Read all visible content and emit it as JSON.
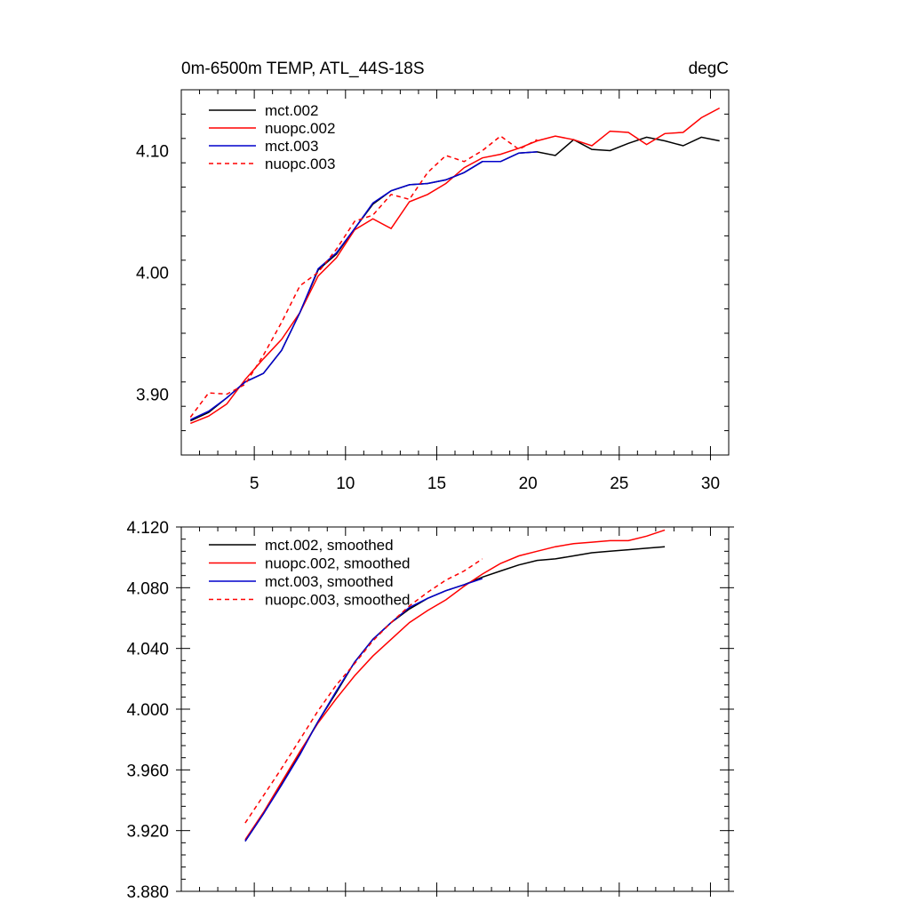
{
  "chart_data": [
    {
      "type": "line",
      "title": "0m-6500m TEMP, ATL_44S-18S",
      "units": "degC",
      "xlim": [
        1,
        31
      ],
      "ylim": [
        3.85,
        4.15
      ],
      "xticks": [
        5,
        10,
        15,
        20,
        25,
        30
      ],
      "xticklabels": [
        "5",
        "10",
        "15",
        "20",
        "25",
        "30"
      ],
      "yticks": [
        3.9,
        4.0,
        4.1
      ],
      "yticklabels": [
        "3.90",
        "4.00",
        "4.10"
      ],
      "legend_position": "top-left",
      "series": [
        {
          "name": "mct.002",
          "color": "#000000",
          "dash": "solid",
          "x": [
            1.5,
            2.5,
            3.5,
            4.5,
            5.5,
            6.5,
            7.5,
            8.5,
            9.5,
            10.5,
            11.5,
            12.5,
            13.5,
            14.5,
            15.5,
            16.5,
            17.5,
            18.5,
            19.5,
            20.5,
            21.5,
            22.5,
            23.5,
            24.5,
            25.5,
            26.5,
            27.5,
            28.5,
            29.5,
            30.5
          ],
          "y": [
            3.878,
            3.885,
            3.897,
            3.91,
            3.917,
            3.936,
            3.967,
            4.002,
            4.015,
            4.036,
            4.056,
            4.067,
            4.072,
            4.073,
            4.076,
            4.082,
            4.091,
            4.091,
            4.098,
            4.099,
            4.096,
            4.109,
            4.101,
            4.1,
            4.106,
            4.111,
            4.108,
            4.104,
            4.111,
            4.108
          ]
        },
        {
          "name": "nuopc.002",
          "color": "#ff0000",
          "dash": "solid",
          "x": [
            1.5,
            2.5,
            3.5,
            4.5,
            5.5,
            6.5,
            7.5,
            8.5,
            9.5,
            10.5,
            11.5,
            12.5,
            13.5,
            14.5,
            15.5,
            16.5,
            17.5,
            18.5,
            19.5,
            20.5,
            21.5,
            22.5,
            23.5,
            24.5,
            25.5,
            26.5,
            27.5,
            28.5,
            29.5,
            30.5
          ],
          "y": [
            3.876,
            3.882,
            3.892,
            3.912,
            3.929,
            3.945,
            3.967,
            3.997,
            4.012,
            4.035,
            4.044,
            4.036,
            4.058,
            4.064,
            4.073,
            4.086,
            4.094,
            4.097,
            4.102,
            4.108,
            4.112,
            4.109,
            4.104,
            4.116,
            4.115,
            4.105,
            4.114,
            4.115,
            4.127,
            4.135
          ]
        },
        {
          "name": "mct.003",
          "color": "#0000cc",
          "dash": "solid",
          "x": [
            1.5,
            2.5,
            3.5,
            4.5,
            5.5,
            6.5,
            7.5,
            8.5,
            9.5,
            10.5,
            11.5,
            12.5,
            13.5,
            14.5,
            15.5,
            16.5,
            17.5,
            18.5,
            19.5,
            20.5
          ],
          "y": [
            3.879,
            3.886,
            3.897,
            3.91,
            3.917,
            3.936,
            3.967,
            4.003,
            4.016,
            4.036,
            4.057,
            4.067,
            4.072,
            4.073,
            4.076,
            4.082,
            4.091,
            4.091,
            4.098,
            4.099
          ]
        },
        {
          "name": "nuopc.003",
          "color": "#ff0000",
          "dash": "dashed",
          "x": [
            1.5,
            2.5,
            3.5,
            4.5,
            5.5,
            6.5,
            7.5,
            8.5,
            9.5,
            10.5,
            11.5,
            12.5,
            13.5,
            14.5,
            15.5,
            16.5,
            17.5,
            18.5,
            19.5,
            20.5
          ],
          "y": [
            3.881,
            3.901,
            3.9,
            3.908,
            3.932,
            3.959,
            3.989,
            4.0,
            4.019,
            4.042,
            4.047,
            4.064,
            4.06,
            4.082,
            4.096,
            4.091,
            4.1,
            4.112,
            4.101,
            4.109
          ]
        }
      ]
    },
    {
      "type": "line",
      "xlim": [
        1,
        31
      ],
      "ylim": [
        3.88,
        4.12
      ],
      "xticks": [
        5,
        10,
        15,
        20,
        25,
        30
      ],
      "xticklabels": [],
      "yticks": [
        3.88,
        3.92,
        3.96,
        4.0,
        4.04,
        4.08,
        4.12
      ],
      "yticklabels": [
        "3.880",
        "3.920",
        "3.960",
        "4.000",
        "4.040",
        "4.080",
        "4.120"
      ],
      "legend_position": "top-left",
      "series": [
        {
          "name": "mct.002, smoothed",
          "color": "#000000",
          "dash": "solid",
          "x": [
            4.5,
            5.5,
            6.5,
            7.5,
            8.5,
            9.5,
            10.5,
            11.5,
            12.5,
            13.5,
            14.5,
            15.5,
            16.5,
            17.5,
            18.5,
            19.5,
            20.5,
            21.5,
            22.5,
            23.5,
            24.5,
            25.5,
            26.5,
            27.5
          ],
          "y": [
            3.913,
            3.931,
            3.951,
            3.971,
            3.992,
            4.011,
            4.031,
            4.046,
            4.057,
            4.066,
            4.073,
            4.078,
            4.082,
            4.087,
            4.091,
            4.095,
            4.098,
            4.099,
            4.101,
            4.103,
            4.104,
            4.105,
            4.106,
            4.107
          ]
        },
        {
          "name": "nuopc.002, smoothed",
          "color": "#ff0000",
          "dash": "solid",
          "x": [
            4.5,
            5.5,
            6.5,
            7.5,
            8.5,
            9.5,
            10.5,
            11.5,
            12.5,
            13.5,
            14.5,
            15.5,
            16.5,
            17.5,
            18.5,
            19.5,
            20.5,
            21.5,
            22.5,
            23.5,
            24.5,
            25.5,
            26.5,
            27.5
          ],
          "y": [
            3.914,
            3.932,
            3.952,
            3.972,
            3.991,
            4.007,
            4.022,
            4.035,
            4.046,
            4.057,
            4.065,
            4.072,
            4.081,
            4.089,
            4.096,
            4.101,
            4.104,
            4.107,
            4.109,
            4.11,
            4.111,
            4.111,
            4.114,
            4.118
          ]
        },
        {
          "name": "mct.003, smoothed",
          "color": "#0000cc",
          "dash": "solid",
          "x": [
            4.5,
            5.5,
            6.5,
            7.5,
            8.5,
            9.5,
            10.5,
            11.5,
            12.5,
            13.5,
            14.5,
            15.5,
            16.5,
            17.5
          ],
          "y": [
            3.913,
            3.931,
            3.95,
            3.97,
            3.992,
            4.012,
            4.031,
            4.046,
            4.057,
            4.067,
            4.073,
            4.078,
            4.082,
            4.086
          ]
        },
        {
          "name": "nuopc.003, smoothed",
          "color": "#ff0000",
          "dash": "dashed",
          "x": [
            4.5,
            5.5,
            6.5,
            7.5,
            8.5,
            9.5,
            10.5,
            11.5,
            12.5,
            13.5,
            14.5,
            15.5,
            16.5,
            17.5
          ],
          "y": [
            3.925,
            3.943,
            3.961,
            3.98,
            3.999,
            4.016,
            4.03,
            4.045,
            4.057,
            4.068,
            4.077,
            4.085,
            4.091,
            4.099
          ]
        }
      ]
    }
  ]
}
